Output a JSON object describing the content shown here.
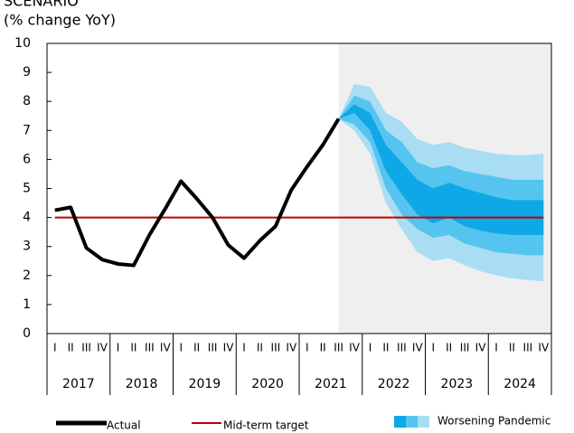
{
  "chart_data": {
    "type": "fan",
    "title": "SCENARIO",
    "subtitle": "(% change YoY)",
    "categories": [
      "I",
      "II",
      "III",
      "IV",
      "I",
      "II",
      "III",
      "IV",
      "I",
      "II",
      "III",
      "IV",
      "I",
      "II",
      "III",
      "IV",
      "I",
      "II",
      "III",
      "IV",
      "I",
      "II",
      "III",
      "IV",
      "I",
      "II",
      "III",
      "IV",
      "I",
      "II",
      "III",
      "IV"
    ],
    "years": [
      "2017",
      "2018",
      "2019",
      "2020",
      "2021",
      "2022",
      "2023",
      "2024"
    ],
    "ylim": [
      0,
      10
    ],
    "yticks": [
      0,
      1,
      2,
      3,
      4,
      5,
      6,
      7,
      8,
      9,
      10
    ],
    "series": [
      {
        "name": "Actual",
        "color": "#000000",
        "values": [
          4.25,
          4.35,
          2.95,
          2.55,
          2.4,
          2.35,
          3.4,
          4.3,
          5.25,
          4.65,
          4.0,
          3.05,
          2.6,
          3.2,
          3.7,
          4.95,
          5.75,
          6.5,
          7.4,
          null,
          null,
          null,
          null,
          null,
          null,
          null,
          null,
          null,
          null,
          null,
          null,
          null
        ]
      }
    ],
    "target": {
      "name": "Mid-term target",
      "color": "#c00000",
      "value": 4.0
    },
    "fan_name": "Worsening Pandemic",
    "fan": [
      {
        "color": "#a9ddf3",
        "upper": [
          null,
          null,
          null,
          null,
          null,
          null,
          null,
          null,
          null,
          null,
          null,
          null,
          null,
          null,
          null,
          null,
          null,
          null,
          7.4,
          8.6,
          8.5,
          7.6,
          7.3,
          6.7,
          6.5,
          6.6,
          6.4,
          6.3,
          6.2,
          6.15,
          6.15,
          6.2
        ],
        "lower": [
          null,
          null,
          null,
          null,
          null,
          null,
          null,
          null,
          null,
          null,
          null,
          null,
          null,
          null,
          null,
          null,
          null,
          null,
          7.4,
          7.0,
          6.2,
          4.5,
          3.6,
          2.8,
          2.5,
          2.6,
          2.35,
          2.15,
          2.0,
          1.9,
          1.85,
          1.8
        ]
      },
      {
        "color": "#55c4ef",
        "upper": [
          null,
          null,
          null,
          null,
          null,
          null,
          null,
          null,
          null,
          null,
          null,
          null,
          null,
          null,
          null,
          null,
          null,
          null,
          7.4,
          8.2,
          8.0,
          7.0,
          6.6,
          5.9,
          5.7,
          5.8,
          5.6,
          5.5,
          5.4,
          5.3,
          5.3,
          5.3
        ],
        "lower": [
          null,
          null,
          null,
          null,
          null,
          null,
          null,
          null,
          null,
          null,
          null,
          null,
          null,
          null,
          null,
          null,
          null,
          null,
          7.4,
          7.2,
          6.6,
          5.0,
          4.1,
          3.6,
          3.3,
          3.4,
          3.1,
          2.95,
          2.8,
          2.75,
          2.7,
          2.7
        ]
      },
      {
        "color": "#0ea8e6",
        "upper": [
          null,
          null,
          null,
          null,
          null,
          null,
          null,
          null,
          null,
          null,
          null,
          null,
          null,
          null,
          null,
          null,
          null,
          null,
          7.4,
          7.9,
          7.6,
          6.5,
          5.9,
          5.3,
          5.0,
          5.2,
          5.0,
          4.85,
          4.7,
          4.6,
          4.6,
          4.6
        ],
        "lower": [
          null,
          null,
          null,
          null,
          null,
          null,
          null,
          null,
          null,
          null,
          null,
          null,
          null,
          null,
          null,
          null,
          null,
          null,
          7.4,
          7.6,
          7.0,
          5.6,
          4.8,
          4.1,
          3.8,
          4.0,
          3.7,
          3.55,
          3.45,
          3.4,
          3.4,
          3.4
        ]
      }
    ]
  }
}
